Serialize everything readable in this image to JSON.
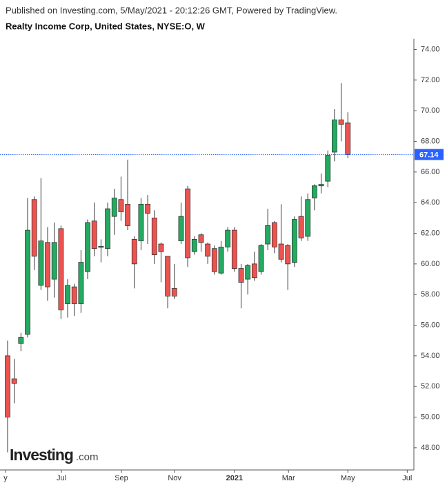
{
  "chart_data": {
    "type": "candlestick",
    "subtitle": "Published on Investing.com, 5/May/2021 - 20:12:26 GMT, Powered by TradingView.",
    "title": "Realty Income Corp, United States, NYSE:O, W",
    "watermark": "Investing",
    "watermark_suffix": ".com",
    "x": [
      0,
      1,
      2,
      3,
      4,
      5,
      6,
      7,
      8,
      9,
      10,
      11,
      12,
      13,
      14,
      15,
      16,
      17,
      18,
      19,
      20,
      21,
      22,
      23,
      24,
      25,
      26,
      27,
      28,
      29,
      30,
      31,
      32,
      33,
      34,
      35,
      36,
      37,
      38,
      39,
      40,
      41,
      42,
      43,
      44,
      45,
      46,
      47,
      48,
      49,
      50,
      51
    ],
    "open": [
      54.0,
      52.5,
      54.8,
      55.4,
      64.2,
      58.6,
      61.4,
      59.0,
      62.3,
      57.4,
      58.5,
      57.4,
      59.5,
      62.8,
      61.1,
      61.0,
      63.1,
      64.2,
      63.9,
      61.6,
      61.5,
      63.9,
      63.0,
      61.3,
      60.5,
      58.4,
      61.5,
      64.9,
      60.8,
      61.9,
      61.3,
      61.0,
      59.4,
      61.1,
      62.2,
      59.7,
      59.0,
      60.0,
      59.5,
      61.3,
      62.7,
      61.3,
      61.2,
      60.1,
      63.1,
      61.8,
      64.3,
      65.1,
      65.4,
      67.3,
      69.4,
      69.2
    ],
    "high": [
      55.0,
      53.8,
      55.5,
      64.3,
      64.4,
      65.6,
      62.4,
      62.7,
      62.5,
      59.0,
      58.7,
      60.9,
      62.9,
      64.0,
      61.6,
      64.0,
      64.9,
      65.7,
      66.8,
      61.8,
      64.3,
      64.5,
      63.5,
      61.4,
      60.5,
      60.0,
      64.0,
      65.1,
      61.8,
      62.0,
      61.4,
      61.2,
      61.5,
      62.4,
      62.4,
      60.0,
      60.0,
      60.8,
      61.3,
      63.6,
      62.8,
      63.9,
      61.3,
      63.1,
      64.4,
      64.6,
      65.2,
      65.9,
      67.4,
      70.1,
      71.8,
      69.9
    ],
    "low": [
      47.7,
      50.9,
      54.3,
      55.2,
      59.6,
      58.3,
      57.6,
      57.8,
      56.4,
      56.5,
      56.6,
      56.8,
      59.0,
      60.5,
      60.1,
      60.5,
      61.9,
      62.8,
      62.2,
      58.4,
      60.9,
      61.3,
      60.0,
      58.8,
      57.1,
      57.7,
      61.3,
      59.8,
      60.6,
      60.8,
      60.0,
      59.3,
      59.3,
      60.8,
      59.5,
      57.1,
      58.0,
      58.9,
      59.3,
      60.9,
      60.7,
      60.1,
      58.3,
      59.8,
      61.5,
      61.5,
      63.5,
      64.6,
      65.0,
      66.7,
      68.0,
      66.9
    ],
    "close": [
      50.0,
      52.2,
      55.2,
      62.2,
      60.5,
      61.5,
      58.5,
      61.4,
      57.0,
      58.6,
      57.4,
      60.1,
      62.7,
      61.0,
      61.15,
      63.6,
      64.3,
      63.4,
      62.5,
      60.0,
      63.9,
      63.3,
      60.6,
      60.8,
      57.9,
      57.9,
      63.1,
      60.4,
      61.6,
      61.4,
      60.5,
      59.5,
      61.1,
      62.2,
      59.7,
      58.8,
      59.9,
      59.1,
      61.2,
      62.5,
      61.1,
      60.3,
      60.0,
      62.9,
      61.7,
      64.2,
      65.1,
      65.2,
      67.1,
      69.4,
      69.1,
      67.14
    ],
    "up_color": "#22ab61",
    "down_color": "#ef5350",
    "last_price": 67.14,
    "last_price_color": "#2962ff",
    "xlim": [
      -1.14,
      60.9
    ],
    "xticks": [
      {
        "value": -0.31,
        "label": "y"
      },
      {
        "value": 8.07,
        "label": "Jul"
      },
      {
        "value": 17.06,
        "label": "Sep"
      },
      {
        "value": 25.03,
        "label": "Nov"
      },
      {
        "value": 34.0,
        "label": "2021"
      },
      {
        "value": 42.1,
        "label": "Mar"
      },
      {
        "value": 51.0,
        "label": "May"
      },
      {
        "value": 59.9,
        "label": "Jul"
      }
    ],
    "ylim": [
      46.55,
      74.7
    ],
    "yticks": [
      {
        "value": 48,
        "label": "48.00"
      },
      {
        "value": 50,
        "label": "50.00"
      },
      {
        "value": 52,
        "label": "52.00"
      },
      {
        "value": 54,
        "label": "54.00"
      },
      {
        "value": 56,
        "label": "56.00"
      },
      {
        "value": 58,
        "label": "58.00"
      },
      {
        "value": 60,
        "label": "60.00"
      },
      {
        "value": 62,
        "label": "62.00"
      },
      {
        "value": 64,
        "label": "64.00"
      },
      {
        "value": 66,
        "label": "66.00"
      },
      {
        "value": 68,
        "label": "68.00"
      },
      {
        "value": 70,
        "label": "70.00"
      },
      {
        "value": 72,
        "label": "72.00"
      },
      {
        "value": 74,
        "label": "74.00"
      }
    ]
  }
}
